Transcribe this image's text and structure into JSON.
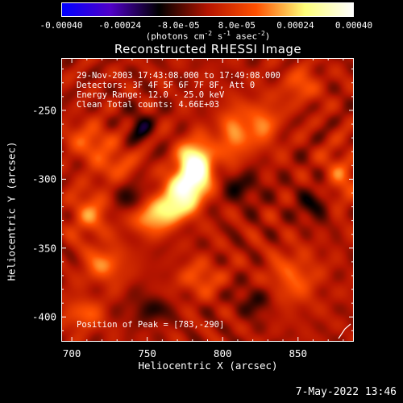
{
  "chart_data": {
    "type": "heatmap",
    "title": "Reconstructed RHESSI Image",
    "xlabel": "Heliocentric X (arcsec)",
    "ylabel": "Heliocentric Y (arcsec)",
    "xlim": [
      693,
      887
    ],
    "ylim": [
      -418,
      -212
    ],
    "x_ticks": [
      "700",
      "750",
      "800",
      "850"
    ],
    "x_tick_values": [
      700,
      750,
      800,
      850
    ],
    "y_ticks": [
      "-250",
      "-300",
      "-350",
      "-400"
    ],
    "y_tick_values": [
      -250,
      -300,
      -350,
      -400
    ],
    "peak_position": [
      783,
      -290
    ],
    "colorbar": {
      "min": -0.0004,
      "max": 0.0004,
      "tick_labels": [
        "-0.00040",
        "-0.00024",
        "-8.0e-05",
        "8.0e-05",
        "0.00024",
        "0.00040"
      ],
      "tick_values": [
        -0.0004,
        -0.00024,
        -8e-05,
        8e-05,
        0.00024,
        0.0004
      ],
      "unit_parts": [
        "(photons cm",
        "-2",
        " s",
        "-1",
        " asec",
        "-2",
        ")"
      ],
      "colors": [
        "#0000ff",
        "#5000c8",
        "#000000",
        "#b41400",
        "#ff5000",
        "#ffff78",
        "#ffffff"
      ]
    },
    "info_lines": [
      "29-Nov-2003 17:43:08.000 to 17:49:08.000",
      "Detectors: 3F 4F 5F 6F 7F 8F, Att 0",
      "Energy Range: 12.0 - 25.0 keV",
      "Clean    Total counts: 4.66E+03"
    ],
    "peak_label": "Position of Peak = [783,-290]",
    "sources": [
      {
        "x": 782,
        "y": -290,
        "sx": 8,
        "sy": 12,
        "amp": 0.00042
      },
      {
        "x": 775,
        "y": -307,
        "sx": 9,
        "sy": 9,
        "amp": 0.00028
      },
      {
        "x": 766,
        "y": -321,
        "sx": 10,
        "sy": 8,
        "amp": 0.00024
      },
      {
        "x": 752,
        "y": -330,
        "sx": 9,
        "sy": 8,
        "amp": 0.00017
      },
      {
        "x": 807,
        "y": -268,
        "sx": 7,
        "sy": 14,
        "amp": 0.00018
      },
      {
        "x": 826,
        "y": -260,
        "sx": 8,
        "sy": 12,
        "amp": 0.00016
      },
      {
        "x": 712,
        "y": -272,
        "sx": 10,
        "sy": 9,
        "amp": 0.00014
      },
      {
        "x": 730,
        "y": -290,
        "sx": 10,
        "sy": 9,
        "amp": 0.00012
      },
      {
        "x": 712,
        "y": -325,
        "sx": 9,
        "sy": 12,
        "amp": 0.00015
      },
      {
        "x": 722,
        "y": -362,
        "sx": 10,
        "sy": 9,
        "amp": 0.00016
      },
      {
        "x": 707,
        "y": -398,
        "sx": 10,
        "sy": 8,
        "amp": 0.00013
      },
      {
        "x": 785,
        "y": -372,
        "sx": 10,
        "sy": 9,
        "amp": 0.00012
      },
      {
        "x": 846,
        "y": -372,
        "sx": 12,
        "sy": 14,
        "amp": 0.00013
      },
      {
        "x": 852,
        "y": -232,
        "sx": 9,
        "sy": 9,
        "amp": 0.00012
      },
      {
        "x": 878,
        "y": -300,
        "sx": 8,
        "sy": 16,
        "amp": 0.00012
      },
      {
        "x": 745,
        "y": -262,
        "sx": 6,
        "sy": 8,
        "amp": -0.00012
      },
      {
        "x": 738,
        "y": -312,
        "sx": 8,
        "sy": 8,
        "amp": -0.0001
      },
      {
        "x": 812,
        "y": -305,
        "sx": 10,
        "sy": 9,
        "amp": -0.0001
      },
      {
        "x": 862,
        "y": -318,
        "sx": 9,
        "sy": 9,
        "amp": -0.00011
      },
      {
        "x": 752,
        "y": -395,
        "sx": 10,
        "sy": 7,
        "amp": -0.0001
      },
      {
        "x": 822,
        "y": -388,
        "sx": 9,
        "sy": 8,
        "amp": -0.0001
      }
    ],
    "grid": false
  },
  "footer": "7-May-2022 13:46"
}
